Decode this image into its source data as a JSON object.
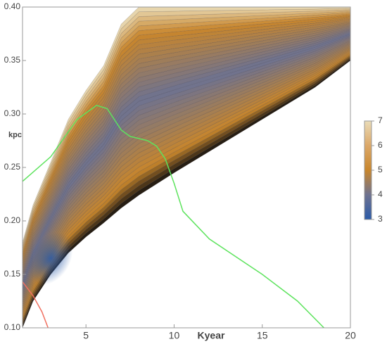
{
  "chart_data": {
    "type": "contour",
    "xlabel": "Kyear",
    "ylabel": "kpc",
    "xlim": [
      1.4,
      20
    ],
    "ylim": [
      0.1,
      0.4
    ],
    "xticks": [
      5,
      10,
      15,
      20
    ],
    "yticks": [
      {
        "value": 0.1,
        "label": "0.10"
      },
      {
        "value": 0.15,
        "label": "0.15"
      },
      {
        "value": 0.2,
        "label": "0.20"
      },
      {
        "value": 0.25,
        "label": "0.25"
      },
      {
        "value": 0.3,
        "label": "0.30"
      },
      {
        "value": 0.35,
        "label": "0.35"
      },
      {
        "value": 0.4,
        "label": "0.40"
      }
    ],
    "region": {
      "x": [
        1.4,
        2,
        3,
        4,
        5,
        6,
        7,
        8,
        10,
        12,
        15,
        18,
        20
      ],
      "upper": [
        0.18,
        0.215,
        0.255,
        0.295,
        0.322,
        0.345,
        0.384,
        0.4,
        0.4,
        0.4,
        0.4,
        0.4,
        0.4
      ],
      "lower": [
        0.1,
        0.125,
        0.15,
        0.17,
        0.185,
        0.198,
        0.212,
        0.224,
        0.245,
        0.265,
        0.295,
        0.325,
        0.35
      ]
    },
    "lines": [
      {
        "color": "#5ee35e",
        "x": [
          1.4,
          3,
          4.5,
          5.6,
          6.2,
          7,
          7.5,
          8.5,
          9,
          9.5,
          10,
          10.5,
          12,
          15,
          17,
          18.5
        ],
        "y": [
          0.237,
          0.26,
          0.295,
          0.308,
          0.305,
          0.285,
          0.279,
          0.275,
          0.27,
          0.258,
          0.235,
          0.209,
          0.183,
          0.15,
          0.125,
          0.1
        ]
      },
      {
        "color": "#f07060",
        "x": [
          1.4,
          2,
          2.5,
          2.85
        ],
        "y": [
          0.143,
          0.13,
          0.115,
          0.1
        ]
      }
    ],
    "colorbar": {
      "lim": [
        3,
        7
      ],
      "ticks": [
        3,
        4,
        5,
        6,
        7
      ],
      "colors": [
        "#2a5aa8",
        "#6e7290",
        "#c8862c",
        "#dca868",
        "#eadcb8"
      ]
    }
  }
}
